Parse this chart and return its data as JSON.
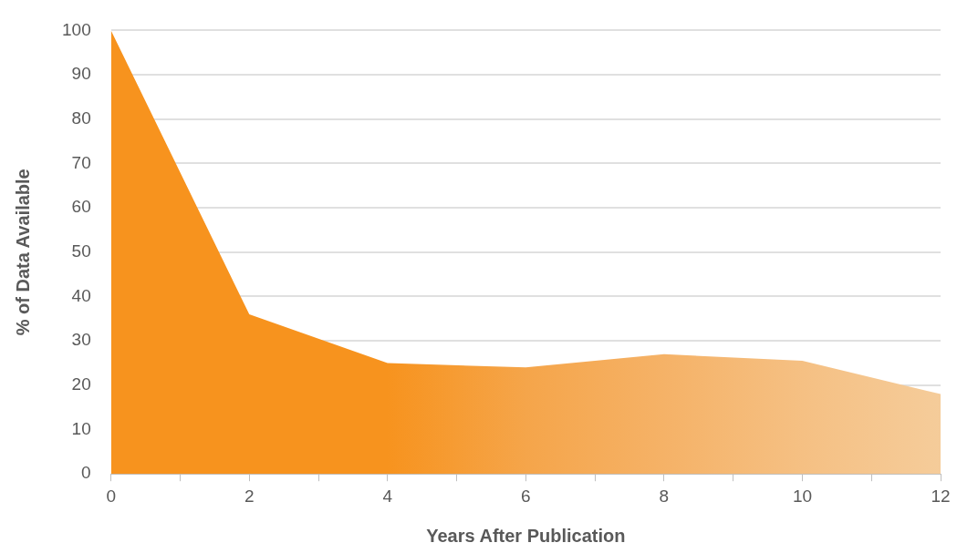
{
  "chart_data": {
    "type": "area",
    "xlabel": "Years After Publication",
    "ylabel": "% of Data Available",
    "x": [
      0,
      2,
      4,
      6,
      8,
      10,
      12
    ],
    "series": [
      {
        "values": [
          100,
          36,
          25,
          24,
          27,
          25.5,
          18
        ],
        "colors": [
          "#f7931e",
          "#f7931e",
          "#f7931e",
          "#f5a54a",
          "#f5b267",
          "#f5c083",
          "#f5cc9a"
        ]
      }
    ],
    "xlim": [
      0,
      12
    ],
    "xticks": [
      0,
      {
        "value": 1,
        "label": null
      },
      2,
      {
        "value": 3,
        "label": null
      },
      4,
      {
        "value": 5,
        "label": null
      },
      6,
      {
        "value": 7,
        "label": null
      },
      8,
      {
        "value": 9,
        "label": null
      },
      10,
      {
        "value": 11,
        "label": null
      },
      12
    ],
    "ylim": [
      0,
      100
    ],
    "yticks": [
      0,
      10,
      20,
      30,
      40,
      50,
      60,
      70,
      80,
      90,
      100
    ],
    "grid": "y",
    "marker": "none"
  }
}
